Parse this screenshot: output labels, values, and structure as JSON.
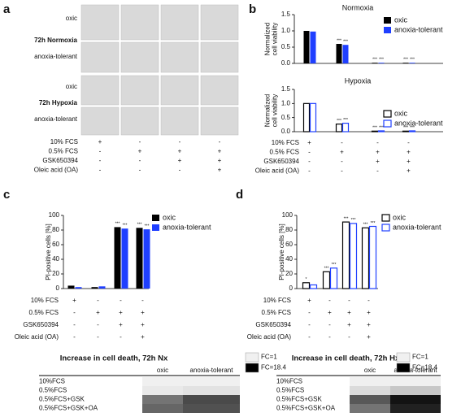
{
  "panel_labels": [
    "a",
    "b",
    "c",
    "d"
  ],
  "microscopy": {
    "row_labels": [
      "oxic",
      "72h Normoxia",
      "anoxia-tolerant",
      "oxic",
      "72h Hypoxia",
      "anoxia-tolerant"
    ],
    "conditions": [
      {
        "label": "10% FCS",
        "signs": [
          "+",
          "-",
          "-",
          "-"
        ]
      },
      {
        "label": "0.5% FCS",
        "signs": [
          "-",
          "+",
          "+",
          "+"
        ]
      },
      {
        "label": "GSK650394",
        "signs": [
          "-",
          "-",
          "+",
          "+"
        ]
      },
      {
        "label": "Oleic acid (OA)",
        "signs": [
          "-",
          "-",
          "-",
          "+"
        ]
      }
    ]
  },
  "chart_data": [
    {
      "type": "bar",
      "title": "Normoxia",
      "bar_style": "filled",
      "ylabel": [
        "Normalized",
        "cell viability"
      ],
      "categories": [
        null,
        null,
        null,
        null
      ],
      "ylim": [
        0,
        1.5
      ],
      "yticks": [
        {
          "value": 0,
          "label": "0.0"
        },
        {
          "value": 0.5,
          "label": "0.5"
        },
        {
          "value": 1,
          "label": "1.0"
        },
        {
          "value": 1.5,
          "label": "1.5"
        }
      ],
      "series": [
        {
          "name": "oxic",
          "color": "#000000",
          "values": [
            1.0,
            0.6,
            0.02,
            0.02
          ],
          "stars": [
            null,
            "***",
            "***",
            "***"
          ]
        },
        {
          "name": "anoxia-tolerant",
          "color": "#1f3fff",
          "values": [
            0.98,
            0.57,
            0.02,
            0.02
          ],
          "stars": [
            null,
            "***",
            "***",
            "***"
          ]
        }
      ]
    },
    {
      "type": "bar",
      "title": "Hypoxia",
      "bar_style": "outline",
      "ylabel": [
        "Normalized",
        "cell viability"
      ],
      "categories": [
        null,
        null,
        null,
        null
      ],
      "ylim": [
        0,
        1.5
      ],
      "yticks": [
        {
          "value": 0,
          "label": "0.0"
        },
        {
          "value": 0.5,
          "label": "0.5"
        },
        {
          "value": 1,
          "label": "1.0"
        },
        {
          "value": 1.5,
          "label": "1.5"
        }
      ],
      "series": [
        {
          "name": "oxic",
          "color": "#000000",
          "values": [
            1.0,
            0.27,
            0.02,
            0.02
          ],
          "stars": [
            null,
            "***",
            "***",
            "***"
          ]
        },
        {
          "name": "anoxia-tolerant",
          "color": "#1f3fff",
          "values": [
            1.0,
            0.3,
            0.03,
            0.03
          ],
          "stars": [
            null,
            "***",
            "***",
            "***"
          ]
        }
      ],
      "conditions": [
        {
          "label": "10% FCS",
          "signs": [
            "+",
            "-",
            "-",
            "-"
          ]
        },
        {
          "label": "0.5% FCS",
          "signs": [
            "-",
            "+",
            "+",
            "+"
          ]
        },
        {
          "label": "GSK650394",
          "signs": [
            "-",
            "-",
            "+",
            "+"
          ]
        },
        {
          "label": "Oleic acid (OA)",
          "signs": [
            "-",
            "-",
            "-",
            "+"
          ]
        }
      ]
    },
    {
      "type": "bar",
      "bar_style": "filled",
      "ylabel": [
        "PI-positive cells [%]"
      ],
      "categories": [
        null,
        null,
        null,
        null
      ],
      "ylim": [
        0,
        100
      ],
      "yticks": [
        0,
        20,
        40,
        60,
        80,
        100
      ],
      "series": [
        {
          "name": "oxic",
          "color": "#000000",
          "values": [
            4,
            2,
            84,
            83
          ],
          "stars": [
            null,
            null,
            "***",
            "***"
          ]
        },
        {
          "name": "anoxia-tolerant",
          "color": "#1f3fff",
          "values": [
            2,
            3,
            82,
            81
          ],
          "stars": [
            null,
            null,
            "***",
            "***"
          ]
        }
      ],
      "conditions": [
        {
          "label": "10% FCS",
          "signs": [
            "+",
            "-",
            "-",
            "-"
          ]
        },
        {
          "label": "0.5% FCS",
          "signs": [
            "-",
            "+",
            "+",
            "+"
          ]
        },
        {
          "label": "GSK650394",
          "signs": [
            "-",
            "-",
            "+",
            "+"
          ]
        },
        {
          "label": "Oleic acid (OA)",
          "signs": [
            "-",
            "-",
            "-",
            "+"
          ]
        }
      ]
    },
    {
      "type": "bar",
      "bar_style": "outline",
      "ylabel": [
        "PI-positive cells [%]"
      ],
      "categories": [
        null,
        null,
        null,
        null
      ],
      "ylim": [
        0,
        100
      ],
      "yticks": [
        0,
        20,
        40,
        60,
        80,
        100
      ],
      "series": [
        {
          "name": "oxic",
          "color": "#000000",
          "values": [
            8,
            23,
            91,
            83
          ],
          "stars": [
            "*",
            "***",
            "***",
            "***"
          ]
        },
        {
          "name": "anoxia-tolerant",
          "color": "#1f3fff",
          "values": [
            5,
            28,
            89,
            85
          ],
          "stars": [
            null,
            "***",
            "***",
            "***"
          ]
        }
      ],
      "conditions": [
        {
          "label": "10% FCS",
          "signs": [
            "+",
            "-",
            "-",
            "-"
          ]
        },
        {
          "label": "0.5% FCS",
          "signs": [
            "-",
            "+",
            "+",
            "+"
          ]
        },
        {
          "label": "GSK650394",
          "signs": [
            "-",
            "-",
            "+",
            "+"
          ]
        },
        {
          "label": "Oleic acid (OA)",
          "signs": [
            "-",
            "-",
            "-",
            "+"
          ]
        }
      ]
    }
  ],
  "heatmaps": [
    {
      "title": "Increase in cell death, 72h Nx",
      "columns": [
        "oxic",
        "anoxia-tolerant"
      ],
      "rows": [
        "10%FCS",
        "0.5%FCS",
        "0.5%FCS+GSK",
        "0.5%FCS+GSK+OA"
      ],
      "values": [
        [
          1,
          1
        ],
        [
          1.5,
          2
        ],
        [
          10,
          13
        ],
        [
          11,
          12.5
        ]
      ],
      "scale": [
        {
          "value": 1,
          "label": "FC=1"
        },
        {
          "value": 18.4,
          "label": "FC=18.4"
        }
      ]
    },
    {
      "title": "Increase in cell death, 72h Hx",
      "columns": [
        "oxic",
        "anoxia-tolerant"
      ],
      "rows": [
        "10%FCS",
        "0.5%FCS",
        "0.5%FCS+GSK",
        "0.5%FCS+GSK+OA"
      ],
      "values": [
        [
          1,
          1
        ],
        [
          2.5,
          4
        ],
        [
          12,
          17
        ],
        [
          10,
          16
        ]
      ],
      "scale": [
        {
          "value": 1,
          "label": "FC=1"
        },
        {
          "value": 18.4,
          "label": "FC=18.4"
        }
      ]
    }
  ]
}
